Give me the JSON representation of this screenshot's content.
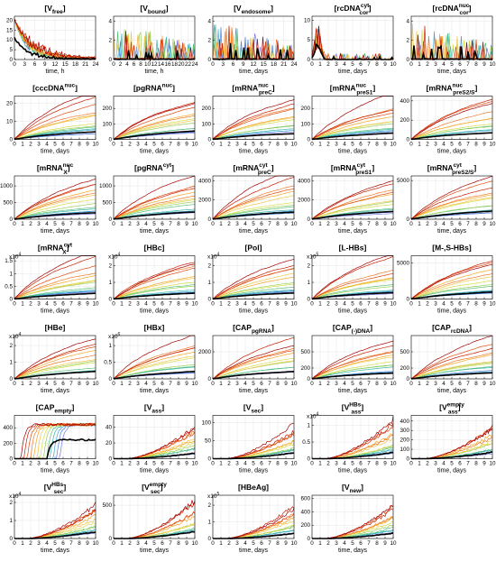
{
  "figure": {
    "panels": [
      {
        "title": "[V_free]",
        "xlabel": "time, h",
        "xticks": [
          0,
          3,
          6,
          9,
          12,
          15,
          18,
          21,
          24
        ],
        "yticks": [
          0,
          5,
          10,
          15,
          20
        ],
        "ylim": [
          0,
          22
        ],
        "pattern": "decay",
        "mult": ""
      },
      {
        "title": "[V_bound]",
        "xlabel": "time, h",
        "xticks": [
          0,
          2,
          4,
          6,
          8,
          10,
          12,
          14,
          16,
          18,
          20,
          22,
          24
        ],
        "yticks": [
          0,
          2,
          4
        ],
        "ylim": [
          0,
          4.5
        ],
        "pattern": "spiky",
        "mult": ""
      },
      {
        "title": "[V_endosome]",
        "xlabel": "time, days",
        "xticks": [
          0,
          3,
          6,
          9,
          12,
          15,
          18,
          21,
          24
        ],
        "yticks": [
          0,
          2,
          4
        ],
        "ylim": [
          0,
          4.5
        ],
        "pattern": "spiky",
        "mult": ""
      },
      {
        "title": "[rcDNA^cyt_cor]",
        "xlabel": "time, days",
        "xticks": [
          0,
          1,
          2,
          3,
          4,
          5,
          6,
          7,
          8,
          9,
          10
        ],
        "yticks": [
          0,
          5,
          10
        ],
        "ylim": [
          0,
          11
        ],
        "pattern": "peak",
        "mult": ""
      },
      {
        "title": "[rcDNA^nuc_cor]",
        "xlabel": "time, days",
        "xticks": [
          0,
          1,
          2,
          3,
          4,
          5,
          6,
          7,
          8,
          9,
          10
        ],
        "yticks": [
          0,
          2,
          4
        ],
        "ylim": [
          0,
          4.5
        ],
        "pattern": "spiky",
        "mult": ""
      },
      {
        "title": "[cccDNA^nuc]",
        "xlabel": "time, days",
        "xticks": [
          0,
          1,
          2,
          3,
          4,
          5,
          6,
          7,
          8,
          9,
          10
        ],
        "yticks": [
          0,
          10,
          20
        ],
        "ylim": [
          0,
          24
        ],
        "pattern": "growth",
        "mult": ""
      },
      {
        "title": "[pgRNA^nuc]",
        "xlabel": "time, days",
        "xticks": [
          0,
          1,
          2,
          3,
          4,
          5,
          6,
          7,
          8,
          9,
          10
        ],
        "yticks": [
          0,
          100,
          200
        ],
        "ylim": [
          0,
          280
        ],
        "pattern": "growth",
        "mult": ""
      },
      {
        "title": "[mRNA^nuc_preC]",
        "xlabel": "time, days",
        "xticks": [
          0,
          1,
          2,
          3,
          4,
          5,
          6,
          7,
          8,
          9,
          10
        ],
        "yticks": [
          0,
          100,
          200
        ],
        "ylim": [
          0,
          280
        ],
        "pattern": "growth",
        "mult": ""
      },
      {
        "title": "[mRNA^nuc_preS1]",
        "xlabel": "time, days",
        "xticks": [
          0,
          1,
          2,
          3,
          4,
          5,
          6,
          7,
          8,
          9,
          10
        ],
        "yticks": [
          0,
          100,
          200
        ],
        "ylim": [
          0,
          280
        ],
        "pattern": "growth",
        "mult": ""
      },
      {
        "title": "[mRNA^nuc_preS2/S]",
        "xlabel": "time, days",
        "xticks": [
          0,
          1,
          2,
          3,
          4,
          5,
          6,
          7,
          8,
          9,
          10
        ],
        "yticks": [
          0,
          200,
          400
        ],
        "ylim": [
          0,
          450
        ],
        "pattern": "growth",
        "mult": ""
      },
      {
        "title": "[mRNA^nuc_X]",
        "xlabel": "time, days",
        "xticks": [
          0,
          1,
          2,
          3,
          4,
          5,
          6,
          7,
          8,
          9,
          10
        ],
        "yticks": [
          0,
          500,
          1000
        ],
        "ylim": [
          0,
          1300
        ],
        "pattern": "growth",
        "mult": ""
      },
      {
        "title": "[pgRNA^cyt]",
        "xlabel": "time, days",
        "xticks": [
          0,
          1,
          2,
          3,
          4,
          5,
          6,
          7,
          8,
          9,
          10
        ],
        "yticks": [
          0,
          500,
          1000
        ],
        "ylim": [
          0,
          1300
        ],
        "pattern": "growth",
        "mult": ""
      },
      {
        "title": "[mRNA^cyt_preC]",
        "xlabel": "time, days",
        "xticks": [
          0,
          1,
          2,
          3,
          4,
          5,
          6,
          7,
          8,
          9,
          10
        ],
        "yticks": [
          0,
          2000,
          4000
        ],
        "ylim": [
          0,
          4500
        ],
        "pattern": "growth",
        "mult": ""
      },
      {
        "title": "[mRNA^cyt_preS1]",
        "xlabel": "time, days",
        "xticks": [
          0,
          1,
          2,
          3,
          4,
          5,
          6,
          7,
          8,
          9,
          10
        ],
        "yticks": [
          0,
          2000,
          4000
        ],
        "ylim": [
          0,
          4500
        ],
        "pattern": "growth",
        "mult": ""
      },
      {
        "title": "[mRNA^cyt_preS2/S]",
        "xlabel": "time, days",
        "xticks": [
          0,
          1,
          2,
          3,
          4,
          5,
          6,
          7,
          8,
          9,
          10
        ],
        "yticks": [
          0,
          5000
        ],
        "ylim": [
          0,
          5600
        ],
        "pattern": "growth",
        "mult": ""
      },
      {
        "title": "[mRNA^cyt_X]",
        "xlabel": "time, days",
        "xticks": [
          0,
          1,
          2,
          3,
          4,
          5,
          6,
          7,
          8,
          9,
          10
        ],
        "yticks": [
          0,
          0.5,
          1,
          1.5
        ],
        "ylim": [
          0,
          1.7
        ],
        "pattern": "growth",
        "mult": "x10^4"
      },
      {
        "title": "[HBc]",
        "xlabel": "time, days",
        "xticks": [
          0,
          1,
          2,
          3,
          4,
          5,
          6,
          7,
          8,
          9,
          10
        ],
        "yticks": [
          0,
          1,
          2
        ],
        "ylim": [
          0,
          2.6
        ],
        "pattern": "growth",
        "mult": "x10^4"
      },
      {
        "title": "[Pol]",
        "xlabel": "time, days",
        "xticks": [
          0,
          1,
          2,
          3,
          4,
          5,
          6,
          7,
          8,
          9,
          10
        ],
        "yticks": [
          0,
          1,
          2
        ],
        "ylim": [
          0,
          2.6
        ],
        "pattern": "growth",
        "mult": "x10^4"
      },
      {
        "title": "[L-HBs]",
        "xlabel": "time, days",
        "xticks": [
          0,
          1,
          2,
          3,
          4,
          5,
          6,
          7,
          8,
          9,
          10
        ],
        "yticks": [
          0,
          1,
          2
        ],
        "ylim": [
          0,
          2.6
        ],
        "pattern": "growth",
        "mult": "x10^5"
      },
      {
        "title": "[M-,S-HBs]",
        "xlabel": "time, days",
        "xticks": [
          0,
          1,
          2,
          3,
          4,
          5,
          6,
          7,
          8,
          9,
          10
        ],
        "yticks": [
          0,
          5000
        ],
        "ylim": [
          0,
          6000
        ],
        "pattern": "growth",
        "mult": ""
      },
      {
        "title": "[HBe]",
        "xlabel": "time, days",
        "xticks": [
          0,
          1,
          2,
          3,
          4,
          5,
          6,
          7,
          8,
          9,
          10
        ],
        "yticks": [
          0,
          1,
          2
        ],
        "ylim": [
          0,
          2.6
        ],
        "pattern": "growth",
        "mult": "x10^4"
      },
      {
        "title": "[HBx]",
        "xlabel": "time, days",
        "xticks": [
          0,
          1,
          2,
          3,
          4,
          5,
          6,
          7,
          8,
          9,
          10
        ],
        "yticks": [
          0,
          0.5,
          1
        ],
        "ylim": [
          0,
          1.3
        ],
        "pattern": "growth",
        "mult": "x10^6"
      },
      {
        "title": "[CAP_pgRNA]",
        "xlabel": "time, days",
        "xticks": [
          0,
          1,
          2,
          3,
          4,
          5,
          6,
          7,
          8,
          9,
          10
        ],
        "yticks": [
          0,
          2000
        ],
        "ylim": [
          0,
          3200
        ],
        "pattern": "growth",
        "mult": ""
      },
      {
        "title": "[CAP_(-)DNA]",
        "xlabel": "time, days",
        "xticks": [
          0,
          1,
          2,
          3,
          4,
          5,
          6,
          7,
          8,
          9,
          10
        ],
        "yticks": [
          0,
          200,
          500
        ],
        "ylim": [
          0,
          800
        ],
        "pattern": "growth",
        "mult": ""
      },
      {
        "title": "[CAP_rcDNA]",
        "xlabel": "time, days",
        "xticks": [
          0,
          1,
          2,
          3,
          4,
          5,
          6,
          7,
          8,
          9,
          10
        ],
        "yticks": [
          0,
          200,
          500
        ],
        "ylim": [
          0,
          800
        ],
        "pattern": "growth",
        "mult": ""
      },
      {
        "title": "[CAP_empty]",
        "xlabel": "time, days",
        "xticks": [
          0,
          1,
          2,
          3,
          4,
          5,
          6,
          7,
          8,
          9,
          10
        ],
        "yticks": [
          0,
          200,
          400
        ],
        "ylim": [
          0,
          560
        ],
        "pattern": "saturate",
        "mult": ""
      },
      {
        "title": "[V_ass]",
        "xlabel": "time, days",
        "xticks": [
          0,
          1,
          2,
          3,
          4,
          5,
          6,
          7,
          8,
          9,
          10
        ],
        "yticks": [
          0,
          20,
          40
        ],
        "ylim": [
          0,
          55
        ],
        "pattern": "lategrowth",
        "mult": ""
      },
      {
        "title": "[V_sec]",
        "xlabel": "time, days",
        "xticks": [
          0,
          1,
          2,
          3,
          4,
          5,
          6,
          7,
          8,
          9,
          10
        ],
        "yticks": [
          0,
          50,
          100
        ],
        "ylim": [
          0,
          120
        ],
        "pattern": "lategrowth",
        "mult": ""
      },
      {
        "title": "[V^HBs_ass]",
        "xlabel": "time, days",
        "xticks": [
          0,
          1,
          2,
          3,
          4,
          5,
          6,
          7,
          8,
          9,
          10
        ],
        "yticks": [
          0,
          0.5,
          1
        ],
        "ylim": [
          0,
          1.3
        ],
        "pattern": "lategrowth",
        "mult": "x10^4"
      },
      {
        "title": "[V^empty_ass]",
        "xlabel": "time, days",
        "xticks": [
          0,
          1,
          2,
          3,
          4,
          5,
          6,
          7,
          8,
          9,
          10
        ],
        "yticks": [
          0,
          100,
          200,
          300,
          400
        ],
        "ylim": [
          0,
          460
        ],
        "pattern": "lategrowth",
        "mult": ""
      },
      {
        "title": "[V^HBs_sec]",
        "xlabel": "time, days",
        "xticks": [
          0,
          1,
          2,
          3,
          4,
          5,
          6,
          7,
          8,
          9,
          10
        ],
        "yticks": [
          0,
          1,
          2
        ],
        "ylim": [
          0,
          2.4
        ],
        "pattern": "lategrowth",
        "mult": "x10^4"
      },
      {
        "title": "[V^empty_sec]",
        "xlabel": "time, days",
        "xticks": [
          0,
          1,
          2,
          3,
          4,
          5,
          6,
          7,
          8,
          9,
          10
        ],
        "yticks": [
          0,
          500
        ],
        "ylim": [
          0,
          650
        ],
        "pattern": "lategrowth",
        "mult": ""
      },
      {
        "title": "[HBeAg]",
        "xlabel": "time, days",
        "xticks": [
          0,
          1,
          2,
          3,
          4,
          5,
          6,
          7,
          8,
          9,
          10
        ],
        "yticks": [
          0,
          1,
          2
        ],
        "ylim": [
          0,
          2.6
        ],
        "pattern": "lategrowth",
        "mult": "x10^5"
      },
      {
        "title": "[V_new]",
        "xlabel": "time, days",
        "xticks": [
          0,
          1,
          2,
          3,
          4,
          5,
          6,
          7,
          8,
          9,
          10
        ],
        "yticks": [
          0,
          200,
          400,
          600
        ],
        "ylim": [
          0,
          650
        ],
        "pattern": "lategrowth",
        "mult": ""
      }
    ]
  },
  "chart_data": {
    "type": "line",
    "layout": {
      "rows": 7,
      "cols": 5,
      "panel_count": 34
    },
    "series_palette": [
      "#a30000",
      "#c81e00",
      "#e04a10",
      "#ef7a2a",
      "#f5a623",
      "#f2c84b",
      "#d7dd4a",
      "#9bd25a",
      "#58c27a",
      "#39b7a8",
      "#3aa6d8",
      "#4f82d9",
      "#7c7ce0"
    ],
    "mean_color": "#000000",
    "grid": true,
    "legend": "none"
  }
}
